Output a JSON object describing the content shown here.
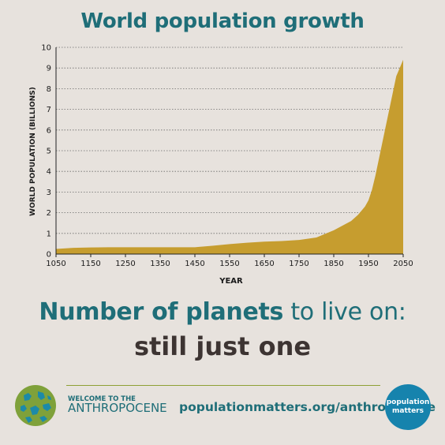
{
  "title": "World population growth",
  "headline": {
    "bold": "Number of planets",
    "rest": " to live on:"
  },
  "subline": "still just one",
  "footer": {
    "welcome_small": "WELCOME TO THE",
    "welcome_big": "ANTHROPOCENE",
    "url": "populationmatters.org/anthropocene",
    "logo_line1": "population",
    "logo_line2": "matters"
  },
  "colors": {
    "title": "#1f6e78",
    "area": "#c69d2f",
    "globe_green": "#7fa13a",
    "logo_blue": "#1683ad"
  },
  "chart_data": {
    "type": "area",
    "xlabel": "YEAR",
    "ylabel": "WORLD POPULATION (BILLIONS)",
    "xlim": [
      1050,
      2050
    ],
    "ylim": [
      0,
      10
    ],
    "grid": true,
    "x_ticks": [
      1050,
      1150,
      1250,
      1350,
      1450,
      1550,
      1650,
      1750,
      1850,
      1950,
      2050
    ],
    "y_ticks": [
      0,
      1,
      2,
      3,
      4,
      5,
      6,
      7,
      8,
      9,
      10
    ],
    "x": [
      1050,
      1100,
      1150,
      1200,
      1250,
      1300,
      1350,
      1400,
      1450,
      1500,
      1550,
      1600,
      1650,
      1700,
      1750,
      1800,
      1850,
      1900,
      1920,
      1940,
      1950,
      1960,
      1970,
      1980,
      1990,
      2000,
      2010,
      2020,
      2030,
      2040,
      2050
    ],
    "y": [
      0.25,
      0.3,
      0.32,
      0.33,
      0.33,
      0.33,
      0.33,
      0.33,
      0.33,
      0.4,
      0.48,
      0.55,
      0.6,
      0.63,
      0.68,
      0.8,
      1.15,
      1.6,
      1.9,
      2.3,
      2.6,
      3.1,
      3.8,
      4.6,
      5.4,
      6.2,
      7.0,
      7.8,
      8.6,
      9.0,
      9.4
    ]
  }
}
